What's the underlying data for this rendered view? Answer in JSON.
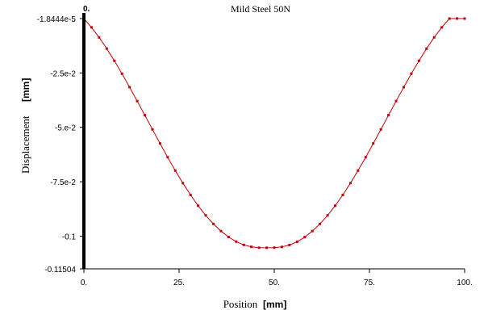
{
  "chart_data": {
    "type": "line",
    "title": "Mild Steel 50N",
    "cursor_label": "0.",
    "xlabel": "Position",
    "xunit": "[mm]",
    "ylabel": "Displacement",
    "yunit": "[mm]",
    "xlim": [
      0,
      100
    ],
    "ylim": [
      -0.11504,
      -1.8444e-05
    ],
    "x_ticks": [
      {
        "value": 0,
        "label": "0."
      },
      {
        "value": 25,
        "label": "25."
      },
      {
        "value": 50,
        "label": "50."
      },
      {
        "value": 75,
        "label": "75."
      },
      {
        "value": 100,
        "label": "100."
      }
    ],
    "y_ticks": [
      {
        "value": -1.8444e-05,
        "label": "-1.8444e-5"
      },
      {
        "value": -0.025,
        "label": "-2.5e-2"
      },
      {
        "value": -0.05,
        "label": "-5.e-2"
      },
      {
        "value": -0.075,
        "label": "-7.5e-2"
      },
      {
        "value": -0.1,
        "label": "-0.1"
      },
      {
        "value": -0.11504,
        "label": "-0.11504"
      }
    ],
    "grid": false,
    "line_color": "#c00000",
    "marker_color": "#c00000",
    "cursor_color": "#000000",
    "series": [
      {
        "x": [
          0,
          2,
          4,
          6,
          8,
          10,
          12,
          14,
          16,
          18,
          20,
          22,
          24,
          26,
          28,
          30,
          32,
          34,
          36,
          38,
          40,
          42,
          44,
          46,
          48,
          50,
          52,
          54,
          56,
          58,
          60,
          62,
          64,
          66,
          68,
          70,
          72,
          74,
          76,
          78,
          80,
          82,
          84,
          86,
          88,
          90,
          92,
          94,
          96,
          98,
          100
        ],
        "y": [
          -2e-05,
          -0.00405,
          -0.00867,
          -0.01382,
          -0.0194,
          -0.02533,
          -0.03154,
          -0.03793,
          -0.04443,
          -0.05095,
          -0.05741,
          -0.06374,
          -0.06984,
          -0.07564,
          -0.08106,
          -0.08601,
          -0.09046,
          -0.09436,
          -0.09768,
          -0.1004,
          -0.10252,
          -0.10402,
          -0.10491,
          -0.10532,
          -0.10534,
          -0.1053,
          -0.10495,
          -0.10406,
          -0.10257,
          -0.10045,
          -0.09768,
          -0.09436,
          -0.09046,
          -0.08601,
          -0.08106,
          -0.07564,
          -0.06984,
          -0.06374,
          -0.05741,
          -0.05095,
          -0.04443,
          -0.03793,
          -0.03154,
          -0.02533,
          -0.0194,
          -0.01382,
          -0.00867,
          -0.00405,
          -2e-05,
          0.0,
          -2e-05
        ]
      }
    ]
  }
}
